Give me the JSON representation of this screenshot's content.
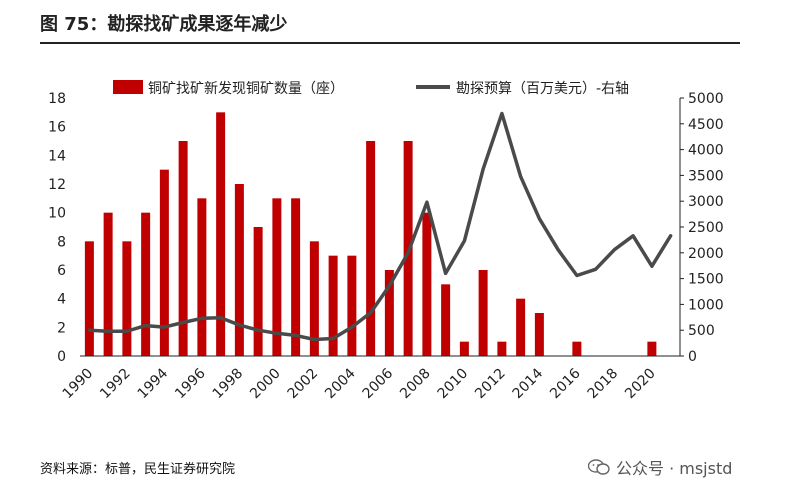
{
  "figure": {
    "title": "图 75：勘探找矿成果逐年减少",
    "source": "资料来源：标普，民生证券研究院",
    "watermark": "公众号 · msjstd"
  },
  "colors": {
    "bar": "#c00000",
    "line": "#4a4a4a",
    "axis": "#222222",
    "rule": "#222222"
  },
  "chart_data": {
    "type": "bar",
    "categories": [
      "1990",
      "1991",
      "1992",
      "1993",
      "1994",
      "1995",
      "1996",
      "1997",
      "1998",
      "1999",
      "2000",
      "2001",
      "2002",
      "2003",
      "2004",
      "2005",
      "2006",
      "2007",
      "2008",
      "2009",
      "2010",
      "2011",
      "2012",
      "2013",
      "2014",
      "2015",
      "2016",
      "2017",
      "2018",
      "2019",
      "2020",
      "2021"
    ],
    "x_tick_labels": [
      "1990",
      "1992",
      "1994",
      "1996",
      "1998",
      "2000",
      "2002",
      "2004",
      "2006",
      "2008",
      "2010",
      "2012",
      "2014",
      "2016",
      "2018",
      "2020"
    ],
    "series": [
      {
        "name": "铜矿找矿新发现铜矿数量（座）",
        "type": "bar",
        "axis": "left",
        "values": [
          8,
          10,
          8,
          10,
          13,
          15,
          11,
          17,
          12,
          9,
          11,
          11,
          8,
          7,
          7,
          15,
          6,
          15,
          10,
          5,
          1,
          6,
          1,
          4,
          3,
          0,
          1,
          0,
          0,
          0,
          1,
          0
        ]
      },
      {
        "name": "勘探预算（百万美元）-右轴",
        "type": "line",
        "axis": "right",
        "values": [
          500,
          480,
          480,
          590,
          560,
          650,
          730,
          740,
          600,
          500,
          440,
          400,
          320,
          340,
          560,
          840,
          1360,
          2000,
          2980,
          1600,
          2230,
          3620,
          4700,
          3480,
          2660,
          2060,
          1560,
          1680,
          2060,
          2330,
          1740,
          2330
        ]
      }
    ],
    "y_left": {
      "ylim": [
        0,
        18
      ],
      "ticks": [
        0,
        2,
        4,
        6,
        8,
        10,
        12,
        14,
        16,
        18
      ]
    },
    "y_right": {
      "ylim": [
        0,
        5000
      ],
      "ticks": [
        0,
        500,
        1000,
        1500,
        2000,
        2500,
        3000,
        3500,
        4000,
        4500,
        5000
      ]
    },
    "legend": {
      "placement": "top"
    },
    "grid": false
  }
}
